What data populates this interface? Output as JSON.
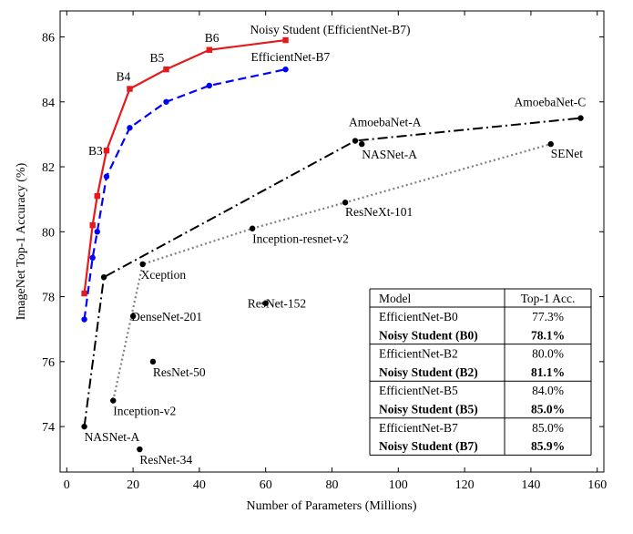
{
  "chart_data": {
    "type": "line",
    "xlabel": "Number of Parameters (Millions)",
    "ylabel": "ImageNet Top-1 Accuracy (%)",
    "xlim": [
      -2,
      162
    ],
    "ylim": [
      72.6,
      86.8
    ],
    "xticks": [
      0,
      20,
      40,
      60,
      80,
      100,
      120,
      140,
      160
    ],
    "yticks": [
      74,
      76,
      78,
      80,
      82,
      84,
      86
    ],
    "grid": false,
    "series": [
      {
        "name": "Noisy Student (EfficientNet-B7)",
        "color": "#e41a1c",
        "marker": "square",
        "linestyle": "solid",
        "x": [
          5.3,
          7.8,
          9.2,
          12,
          19,
          30,
          43,
          66
        ],
        "y": [
          78.1,
          80.2,
          81.1,
          82.5,
          84.4,
          85.0,
          85.6,
          85.9
        ]
      },
      {
        "name": "EfficientNet-B7",
        "color": "#0000ff",
        "marker": "circle",
        "linestyle": "dashed",
        "x": [
          5.3,
          7.8,
          9.2,
          12,
          19,
          30,
          43,
          66
        ],
        "y": [
          77.3,
          79.2,
          80.0,
          81.7,
          83.2,
          84.0,
          84.5,
          85.0
        ]
      },
      {
        "color": "#000000",
        "marker": "circle",
        "linestyle": "dashdot",
        "x": [
          5.3,
          11.2,
          87,
          155
        ],
        "y": [
          74.0,
          78.6,
          82.8,
          83.5
        ]
      },
      {
        "color": "#808080",
        "marker": "circle",
        "linestyle": "dotted",
        "x": [
          14,
          22.9,
          56,
          84,
          146
        ],
        "y": [
          74.8,
          79.0,
          80.1,
          80.9,
          82.7
        ]
      }
    ],
    "points": [
      {
        "label": "NASNet-A",
        "x": 5.3,
        "y": 74.0
      },
      {
        "label": "ResNet-34",
        "x": 22,
        "y": 73.3
      },
      {
        "label": "Inception-v2",
        "x": 14,
        "y": 74.8
      },
      {
        "label": "ResNet-50",
        "x": 26,
        "y": 76.0
      },
      {
        "label": "DenseNet-201",
        "x": 20,
        "y": 77.4
      },
      {
        "label": "ResNet-152",
        "x": 60,
        "y": 77.8
      },
      {
        "label": "Xception",
        "x": 22.9,
        "y": 79.0
      },
      {
        "label": "Inception-resnet-v2",
        "x": 56,
        "y": 80.1
      },
      {
        "label": "ResNeXt-101",
        "x": 84,
        "y": 80.9
      },
      {
        "label": "NASNet-A",
        "x": 89,
        "y": 82.7
      },
      {
        "label": "AmoebaNet-A",
        "x": 87,
        "y": 82.8
      },
      {
        "label": "SENet",
        "x": 146,
        "y": 82.7
      },
      {
        "label": "AmoebaNet-C",
        "x": 155,
        "y": 83.5
      },
      {
        "label": "",
        "x": 11.2,
        "y": 78.6
      }
    ],
    "annotations": [
      {
        "text": "Noisy Student (EfficientNet-B7)",
        "x": 66,
        "y": 85.9
      },
      {
        "text": "EfficientNet-B7",
        "x": 66,
        "y": 85.0
      },
      {
        "text": "B6",
        "x": 43,
        "y": 85.6
      },
      {
        "text": "B5",
        "x": 30,
        "y": 85.0
      },
      {
        "text": "B4",
        "x": 19,
        "y": 84.4
      },
      {
        "text": "B3",
        "x": 12,
        "y": 82.5
      }
    ],
    "table": {
      "headers": [
        "Model",
        "Top-1 Acc."
      ],
      "rows": [
        {
          "model": "EfficientNet-B0",
          "acc": "77.3%",
          "bold": false
        },
        {
          "model": "Noisy Student (B0)",
          "acc": "78.1%",
          "bold": true
        },
        {
          "model": "EfficientNet-B2",
          "acc": "80.0%",
          "bold": false
        },
        {
          "model": "Noisy Student (B2)",
          "acc": "81.1%",
          "bold": true
        },
        {
          "model": "EfficientNet-B5",
          "acc": "84.0%",
          "bold": false
        },
        {
          "model": "Noisy Student (B5)",
          "acc": "85.0%",
          "bold": true
        },
        {
          "model": "EfficientNet-B7",
          "acc": "85.0%",
          "bold": false
        },
        {
          "model": "Noisy Student (B7)",
          "acc": "85.9%",
          "bold": true
        }
      ]
    }
  }
}
